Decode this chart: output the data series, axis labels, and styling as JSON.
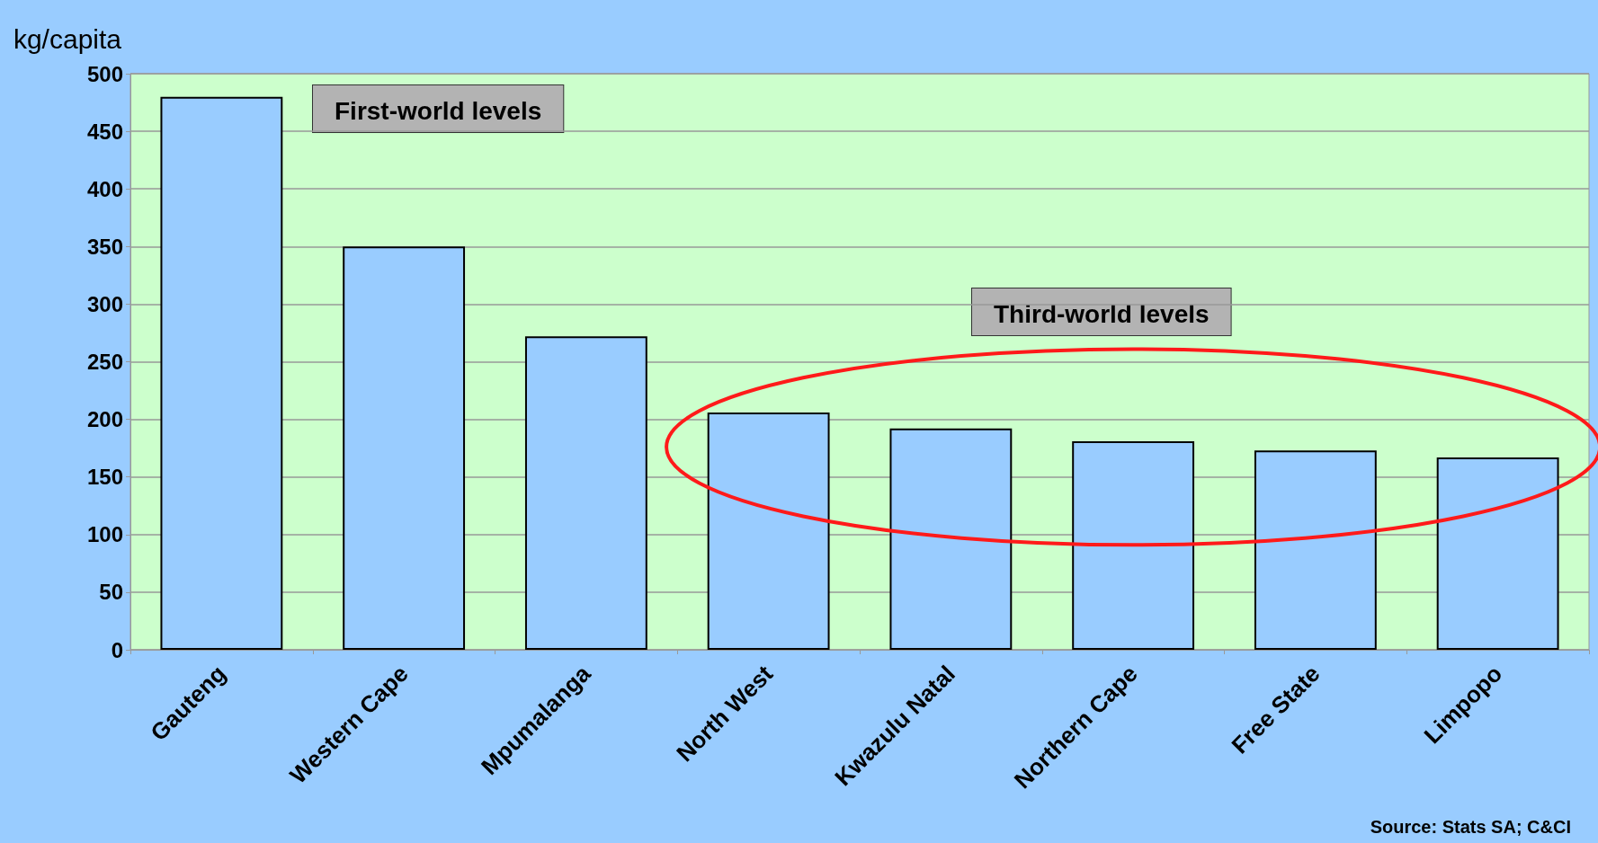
{
  "chart_data": {
    "type": "bar",
    "ylabel": "kg/capita",
    "categories": [
      "Gauteng",
      "Western Cape",
      "Mpumalanga",
      "North West",
      "Kwazulu Natal",
      "Northern Cape",
      "Free State",
      "Limpopo"
    ],
    "values": [
      480,
      350,
      272,
      206,
      192,
      181,
      173,
      167
    ],
    "color": "#99ccff",
    "ylim": [
      0,
      500
    ],
    "yticks": [
      0,
      50,
      100,
      150,
      200,
      250,
      300,
      350,
      400,
      450,
      500
    ],
    "grid": "y",
    "annotations": [
      "First-world levels",
      "Third-world levels",
      "Source: Stats SA; C&CI"
    ]
  }
}
